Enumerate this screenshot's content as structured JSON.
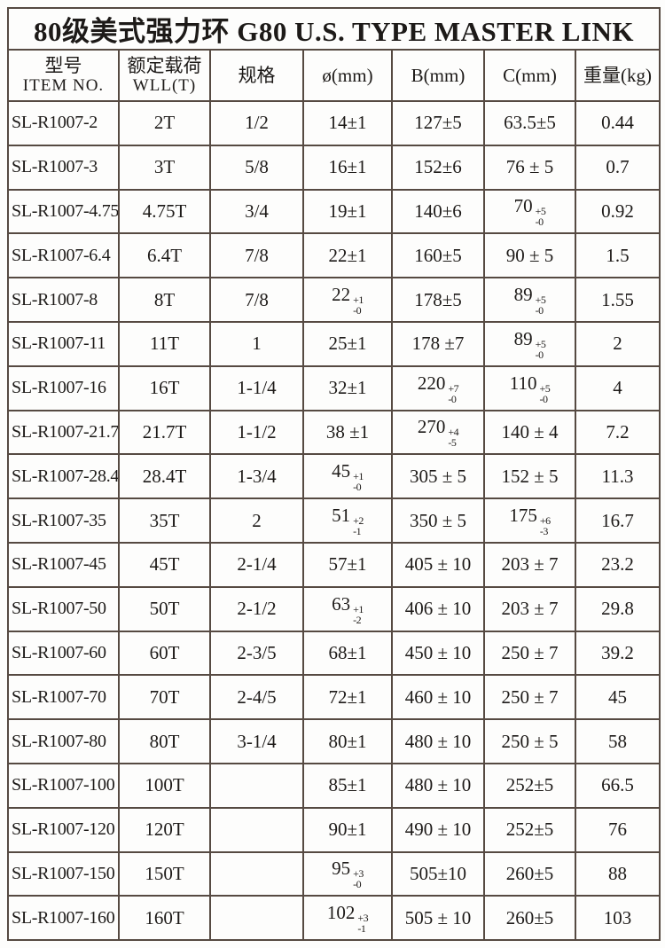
{
  "page": {
    "background_color": "#fdfdfc",
    "border_color": "#564a42",
    "text_color": "#1d1a18"
  },
  "table": {
    "title": "80级美式强力环 G80 U.S. TYPE MASTER LINK",
    "headers": [
      {
        "line1": "型号",
        "line2": "ITEM NO."
      },
      {
        "line1": "额定载荷",
        "line2": "WLL(T)"
      },
      {
        "line1": "规格",
        "line2": ""
      },
      {
        "line1": "ø(mm)",
        "line2": ""
      },
      {
        "line1": "B(mm)",
        "line2": ""
      },
      {
        "line1": "C(mm)",
        "line2": ""
      },
      {
        "line1": "重量(kg)",
        "line2": ""
      }
    ],
    "cell_names": [
      "item-no-cell",
      "wll-cell",
      "spec-cell",
      "diameter-cell",
      "b-dim-cell",
      "c-dim-cell",
      "weight-cell"
    ],
    "rows": [
      [
        "SL-R1007-2",
        "2T",
        "1/2",
        "14±1",
        "127±5",
        "63.5±5",
        "0.44"
      ],
      [
        "SL-R1007-3",
        "3T",
        "5/8",
        "16±1",
        "152±6",
        "76 ± 5",
        "0.7"
      ],
      [
        "SL-R1007-4.75",
        "4.75T",
        "3/4",
        "19±1",
        "140±6",
        {
          "v": "70",
          "sup": "+5",
          "sub": "-0"
        },
        "0.92"
      ],
      [
        "SL-R1007-6.4",
        "6.4T",
        "7/8",
        "22±1",
        "160±5",
        "90 ± 5",
        "1.5"
      ],
      [
        "SL-R1007-8",
        "8T",
        "7/8",
        {
          "v": "22",
          "sup": "+1",
          "sub": "-0"
        },
        "178±5",
        {
          "v": "89",
          "sup": "+5",
          "sub": "-0"
        },
        "1.55"
      ],
      [
        "SL-R1007-11",
        "11T",
        "1",
        "25±1",
        "178 ±7",
        {
          "v": "89",
          "sup": "+5",
          "sub": "-0"
        },
        "2"
      ],
      [
        "SL-R1007-16",
        "16T",
        "1-1/4",
        "32±1",
        {
          "v": "220",
          "sup": "+7",
          "sub": "-0"
        },
        {
          "v": "110",
          "sup": "+5",
          "sub": "-0"
        },
        "4"
      ],
      [
        "SL-R1007-21.7",
        "21.7T",
        "1-1/2",
        "38 ±1",
        {
          "v": "270",
          "sup": "+4",
          "sub": "-5"
        },
        "140 ± 4",
        "7.2"
      ],
      [
        "SL-R1007-28.4",
        "28.4T",
        "1-3/4",
        {
          "v": "45",
          "sup": "+1",
          "sub": "-0"
        },
        "305 ± 5",
        "152 ± 5",
        "11.3"
      ],
      [
        "SL-R1007-35",
        "35T",
        "2",
        {
          "v": "51",
          "sup": "+2",
          "sub": "-1"
        },
        "350 ± 5",
        {
          "v": "175",
          "sup": "+6",
          "sub": "-3"
        },
        "16.7"
      ],
      [
        "SL-R1007-45",
        "45T",
        "2-1/4",
        "57±1",
        "405 ± 10",
        "203 ± 7",
        "23.2"
      ],
      [
        "SL-R1007-50",
        "50T",
        "2-1/2",
        {
          "v": "63",
          "sup": "+1",
          "sub": "-2"
        },
        "406 ± 10",
        "203 ± 7",
        "29.8"
      ],
      [
        "SL-R1007-60",
        "60T",
        "2-3/5",
        "68±1",
        "450 ± 10",
        "250 ± 7",
        "39.2"
      ],
      [
        "SL-R1007-70",
        "70T",
        "2-4/5",
        "72±1",
        "460 ± 10",
        "250 ± 7",
        "45"
      ],
      [
        "SL-R1007-80",
        "80T",
        "3-1/4",
        "80±1",
        "480 ± 10",
        "250 ± 5",
        "58"
      ],
      [
        "SL-R1007-100",
        "100T",
        "",
        "85±1",
        "480 ± 10",
        "252±5",
        "66.5"
      ],
      [
        "SL-R1007-120",
        "120T",
        "",
        "90±1",
        "490 ± 10",
        "252±5",
        "76"
      ],
      [
        "SL-R1007-150",
        "150T",
        "",
        {
          "v": "95",
          "sup": "+3",
          "sub": "-0"
        },
        "505±10",
        "260±5",
        "88"
      ],
      [
        "SL-R1007-160",
        "160T",
        "",
        {
          "v": "102",
          "sup": "+3",
          "sub": "-1"
        },
        "505 ± 10",
        "260±5",
        "103"
      ]
    ]
  }
}
